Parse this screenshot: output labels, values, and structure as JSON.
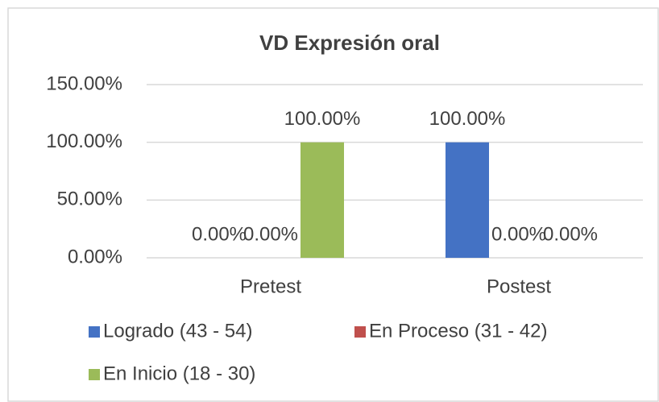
{
  "chart_data": {
    "type": "bar",
    "title": "VD Expresión oral",
    "categories": [
      "Pretest",
      "Postest"
    ],
    "series": [
      {
        "name": "Logrado (43 - 54)",
        "color": "#4472c4",
        "values": [
          0,
          100
        ],
        "value_labels": [
          "0.00%",
          "100.00%"
        ]
      },
      {
        "name": "En Proceso (31 - 42)",
        "color": "#c0504d",
        "values": [
          0,
          0
        ],
        "value_labels": [
          "0.00%",
          "0.00%"
        ]
      },
      {
        "name": "En Inicio (18 - 30)",
        "color": "#9bbb59",
        "values": [
          100,
          0
        ],
        "value_labels": [
          "100.00%",
          "0.00%"
        ]
      }
    ],
    "ylim": [
      0,
      150
    ],
    "yticks": [
      {
        "value": 0,
        "label": "0.00%"
      },
      {
        "value": 50,
        "label": "50.00%"
      },
      {
        "value": 100,
        "label": "100.00%"
      },
      {
        "value": 150,
        "label": "150.00%"
      }
    ],
    "grid": true,
    "legend": "bottom"
  }
}
